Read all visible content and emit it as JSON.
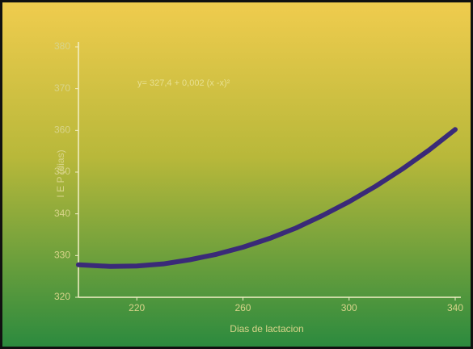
{
  "chart_data": {
    "type": "line",
    "annotation": "y= 327,4 + 0,002 (x -x)²",
    "x_label": "Dias de lactacion",
    "y_label": "I E P (dias)",
    "x": [
      198,
      210,
      220,
      230,
      240,
      250,
      260,
      270,
      280,
      290,
      300,
      310,
      320,
      330,
      340
    ],
    "series": [
      {
        "color": "#3a2a78",
        "values": [
          327.8,
          327.4,
          327.5,
          328.0,
          329.0,
          330.3,
          332.0,
          334.1,
          336.6,
          339.6,
          342.9,
          346.6,
          350.7,
          355.2,
          360.2
        ]
      }
    ],
    "xlim": [
      198,
      340
    ],
    "xticks": [
      220,
      260,
      300,
      340
    ],
    "ylim": [
      320,
      380
    ],
    "yticks": [
      320,
      330,
      340,
      350,
      360,
      370,
      380
    ],
    "grid": false
  }
}
